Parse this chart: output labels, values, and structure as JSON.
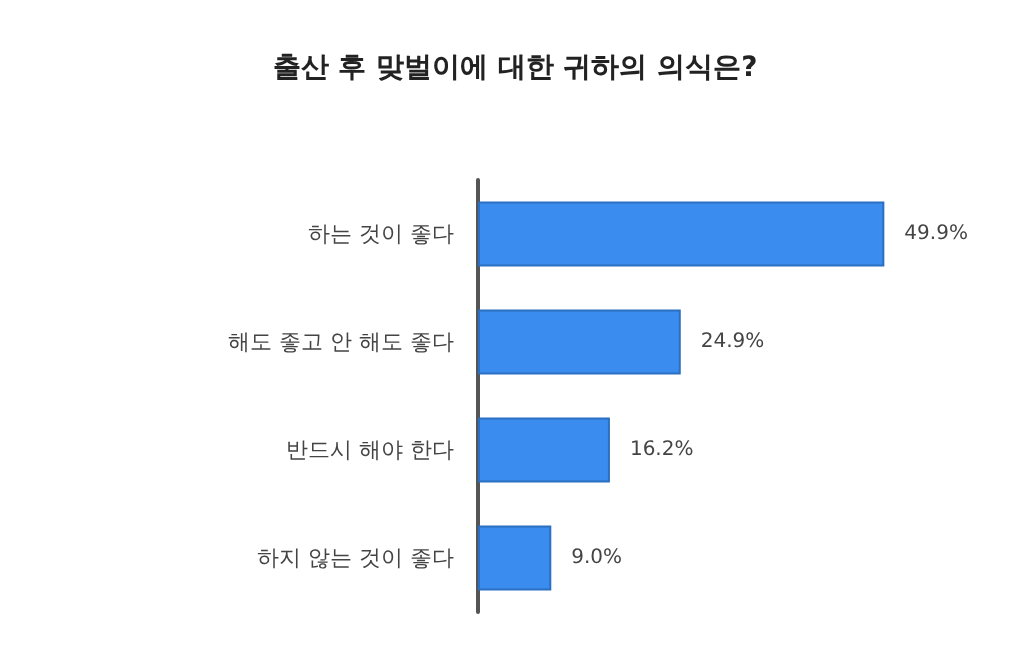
{
  "chart_data": {
    "type": "bar",
    "orientation": "horizontal",
    "title": "출산 후 맞벌이에 대한 귀하의 의식은?",
    "categories": [
      "하는 것이 좋다",
      "해도 좋고 안 해도 좋다",
      "반드시 해야 한다",
      "하지 않는 것이 좋다"
    ],
    "values": [
      49.9,
      24.9,
      16.2,
      9.0
    ],
    "value_labels": [
      "49.9%",
      "24.9%",
      "16.2%",
      "9.0%"
    ],
    "color": "#3a8cee"
  }
}
